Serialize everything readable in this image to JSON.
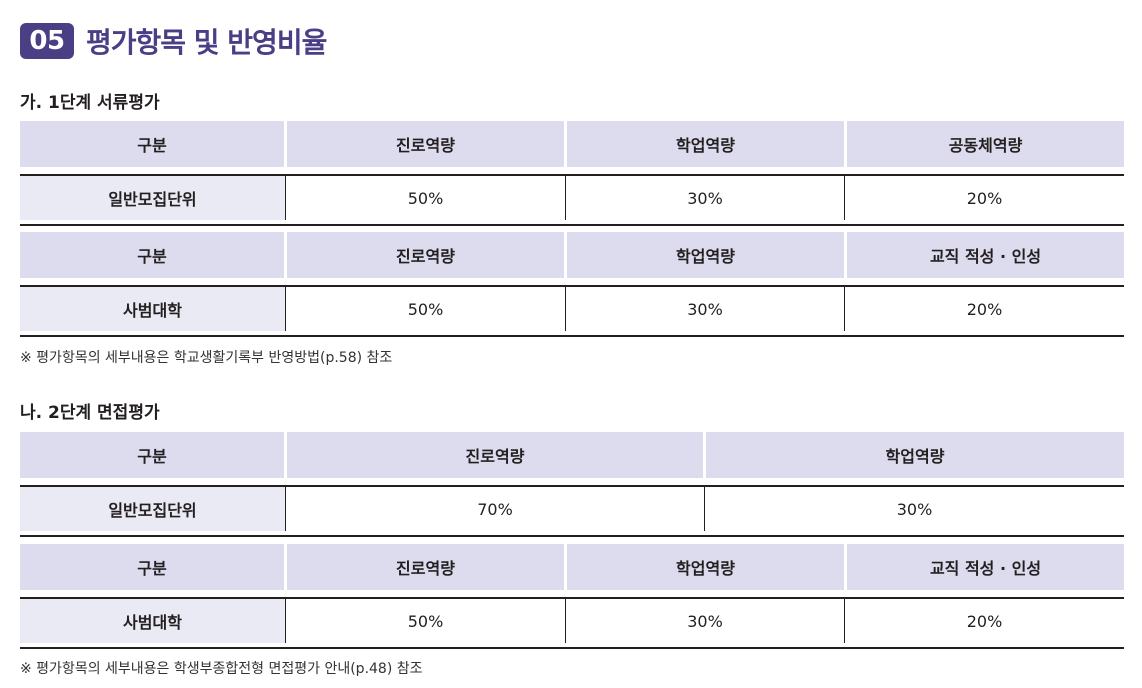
{
  "header": {
    "badge": "05",
    "title": "평가항목 및 반영비율"
  },
  "section1": {
    "title": "가. 1단계 서류평가",
    "table1": {
      "headers": [
        "구분",
        "진로역량",
        "학업역량",
        "공동체역량"
      ],
      "row": [
        "일반모집단위",
        "50%",
        "30%",
        "20%"
      ]
    },
    "table2": {
      "headers": [
        "구분",
        "진로역량",
        "학업역량",
        "교직 적성 · 인성"
      ],
      "row": [
        "사범대학",
        "50%",
        "30%",
        "20%"
      ]
    },
    "note": "※ 평가항목의 세부내용은 학교생활기록부 반영방법(p.58) 참조"
  },
  "section2": {
    "title": "나. 2단계 면접평가",
    "table1": {
      "headers": [
        "구분",
        "진로역량",
        "학업역량"
      ],
      "row": [
        "일반모집단위",
        "70%",
        "30%"
      ]
    },
    "table2": {
      "headers": [
        "구분",
        "진로역량",
        "학업역량",
        "교직 적성 · 인성"
      ],
      "row": [
        "사범대학",
        "50%",
        "30%",
        "20%"
      ]
    },
    "note": "※ 평가항목의 세부내용은 학생부종합전형 면접평가 안내(p.48) 참조"
  }
}
